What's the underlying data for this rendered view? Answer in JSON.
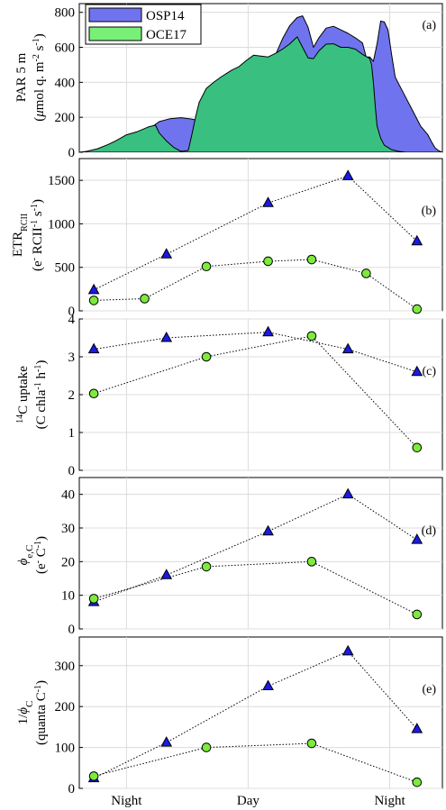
{
  "colors": {
    "osp14": "#6F74EE",
    "oce17": "#78F078",
    "overlap": "#39C080",
    "tri_fill": "#1A1AE6",
    "circ_fill": "#7CEB3C"
  },
  "legend": {
    "osp14": "OSP14",
    "oce17": "OCE17"
  },
  "x_ticks": [
    "Night",
    "Day",
    "Night"
  ],
  "chart_data": [
    {
      "type": "area",
      "panel_label": "(a)",
      "ylabel": [
        "PAR 5 m",
        "(μmol q. m⁻² s⁻¹)"
      ],
      "ylim": [
        0,
        850
      ],
      "yticks": [
        0,
        200,
        400,
        600,
        800
      ],
      "series": [
        {
          "name": "OSP14",
          "points": [
            [
              0.0,
              0
            ],
            [
              0.05,
              4
            ],
            [
              0.1,
              15
            ],
            [
              0.14,
              62
            ],
            [
              0.18,
              110
            ],
            [
              0.2,
              145
            ],
            [
              0.22,
              175
            ],
            [
              0.25,
              192
            ],
            [
              0.28,
              198
            ],
            [
              0.31,
              190
            ],
            [
              0.33,
              180
            ],
            [
              0.34,
              172
            ],
            [
              0.36,
              194
            ],
            [
              0.38,
              205
            ],
            [
              0.4,
              220
            ],
            [
              0.42,
              225
            ],
            [
              0.44,
              240
            ],
            [
              0.46,
              290
            ],
            [
              0.48,
              400
            ],
            [
              0.5,
              465
            ],
            [
              0.52,
              500
            ],
            [
              0.54,
              555
            ],
            [
              0.56,
              650
            ],
            [
              0.58,
              725
            ],
            [
              0.6,
              770
            ],
            [
              0.615,
              780
            ],
            [
              0.63,
              715
            ],
            [
              0.645,
              600
            ],
            [
              0.66,
              655
            ],
            [
              0.68,
              710
            ],
            [
              0.7,
              720
            ],
            [
              0.72,
              700
            ],
            [
              0.74,
              680
            ],
            [
              0.76,
              655
            ],
            [
              0.78,
              625
            ],
            [
              0.79,
              545
            ],
            [
              0.8,
              545
            ],
            [
              0.81,
              520
            ],
            [
              0.82,
              620
            ],
            [
              0.83,
              750
            ],
            [
              0.84,
              745
            ],
            [
              0.85,
              700
            ],
            [
              0.86,
              560
            ],
            [
              0.87,
              430
            ],
            [
              0.88,
              390
            ],
            [
              0.9,
              310
            ],
            [
              0.92,
              230
            ],
            [
              0.94,
              150
            ],
            [
              0.96,
              100
            ],
            [
              0.97,
              60
            ],
            [
              0.98,
              25
            ],
            [
              0.99,
              8
            ],
            [
              1.0,
              0
            ]
          ]
        },
        {
          "name": "OCE17",
          "points": [
            [
              0.0,
              0
            ],
            [
              0.02,
              5
            ],
            [
              0.05,
              20
            ],
            [
              0.08,
              45
            ],
            [
              0.1,
              65
            ],
            [
              0.13,
              100
            ],
            [
              0.16,
              118
            ],
            [
              0.19,
              145
            ],
            [
              0.21,
              155
            ],
            [
              0.22,
              110
            ],
            [
              0.24,
              65
            ],
            [
              0.26,
              28
            ],
            [
              0.28,
              5
            ],
            [
              0.3,
              10
            ],
            [
              0.31,
              100
            ],
            [
              0.32,
              200
            ],
            [
              0.33,
              285
            ],
            [
              0.35,
              365
            ],
            [
              0.37,
              400
            ],
            [
              0.39,
              430
            ],
            [
              0.42,
              470
            ],
            [
              0.44,
              490
            ],
            [
              0.46,
              525
            ],
            [
              0.48,
              555
            ],
            [
              0.5,
              550
            ],
            [
              0.52,
              545
            ],
            [
              0.54,
              565
            ],
            [
              0.56,
              590
            ],
            [
              0.58,
              620
            ],
            [
              0.6,
              660
            ],
            [
              0.615,
              600
            ],
            [
              0.63,
              540
            ],
            [
              0.645,
              535
            ],
            [
              0.66,
              580
            ],
            [
              0.68,
              618
            ],
            [
              0.7,
              620
            ],
            [
              0.72,
              600
            ],
            [
              0.74,
              600
            ],
            [
              0.76,
              590
            ],
            [
              0.78,
              560
            ],
            [
              0.8,
              535
            ],
            [
              0.805,
              500
            ],
            [
              0.81,
              400
            ],
            [
              0.815,
              270
            ],
            [
              0.82,
              150
            ],
            [
              0.83,
              80
            ],
            [
              0.84,
              40
            ],
            [
              0.86,
              15
            ],
            [
              0.88,
              5
            ],
            [
              0.9,
              0
            ],
            [
              1.0,
              0
            ]
          ]
        }
      ]
    },
    {
      "type": "line",
      "panel_label": "(b)",
      "ylabel": [
        "ETRRCII",
        "(e⁻ RCII⁻¹ s⁻¹)"
      ],
      "ylim": [
        0,
        1750
      ],
      "yticks": [
        0,
        500,
        1000,
        1500
      ],
      "series": [
        {
          "name": "OSP14",
          "x": [
            0.04,
            0.24,
            0.52,
            0.74,
            0.93
          ],
          "values": [
            240,
            650,
            1240,
            1550,
            800
          ]
        },
        {
          "name": "OCE17",
          "x": [
            0.04,
            0.18,
            0.35,
            0.52,
            0.64,
            0.79,
            0.93
          ],
          "values": [
            120,
            140,
            510,
            570,
            590,
            430,
            20
          ]
        }
      ]
    },
    {
      "type": "line",
      "panel_label": "(c)",
      "ylabel": [
        "14C uptake",
        "(C chla⁻¹ h⁻¹)"
      ],
      "ylim": [
        0,
        4
      ],
      "yticks": [
        0,
        1,
        2,
        3,
        4
      ],
      "series": [
        {
          "name": "OSP14",
          "x": [
            0.04,
            0.24,
            0.52,
            0.74,
            0.93
          ],
          "values": [
            3.2,
            3.5,
            3.65,
            3.2,
            2.6
          ]
        },
        {
          "name": "OCE17",
          "x": [
            0.04,
            0.35,
            0.64,
            0.93
          ],
          "values": [
            2.03,
            3.0,
            3.55,
            0.6
          ]
        }
      ]
    },
    {
      "type": "line",
      "panel_label": "(d)",
      "ylabel": [
        "φe,C",
        "(e⁻ C⁻¹)"
      ],
      "ylim": [
        0,
        45
      ],
      "yticks": [
        0,
        10,
        20,
        30,
        40
      ],
      "series": [
        {
          "name": "OSP14",
          "x": [
            0.04,
            0.24,
            0.52,
            0.74,
            0.93
          ],
          "values": [
            8,
            16,
            29,
            40,
            26.5
          ]
        },
        {
          "name": "OCE17",
          "x": [
            0.04,
            0.35,
            0.64,
            0.93
          ],
          "values": [
            9,
            18.5,
            20,
            4.3
          ]
        }
      ]
    },
    {
      "type": "line",
      "panel_label": "(e)",
      "ylabel": [
        "1/φC",
        "(quanta C⁻¹)"
      ],
      "ylim": [
        0,
        370
      ],
      "yticks": [
        0,
        100,
        200,
        300
      ],
      "series": [
        {
          "name": "OSP14",
          "x": [
            0.04,
            0.24,
            0.52,
            0.74,
            0.93
          ],
          "values": [
            25,
            112,
            250,
            335,
            145
          ]
        },
        {
          "name": "OCE17",
          "x": [
            0.04,
            0.35,
            0.64,
            0.93
          ],
          "values": [
            30,
            100,
            110,
            15
          ]
        }
      ]
    }
  ]
}
